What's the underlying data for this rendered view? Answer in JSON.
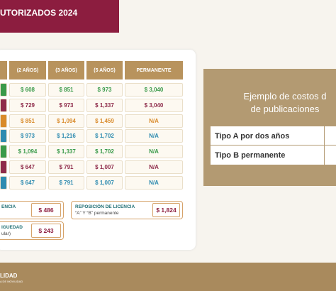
{
  "banner": {
    "title": "UTORIZADOS 2024"
  },
  "table": {
    "headers": [
      "(2 AÑOS)",
      "(3 AÑOS)",
      "(5 AÑOS)",
      "PERMANENTE"
    ],
    "rows": [
      [
        "$ 608",
        "$ 851",
        "$ 973",
        "$ 3,040"
      ],
      [
        "$ 729",
        "$ 973",
        "$ 1,337",
        "$ 3,040"
      ],
      [
        "$ 851",
        "$ 1,094",
        "$ 1,459",
        "N/A"
      ],
      [
        "$ 973",
        "$ 1,216",
        "$ 1,702",
        "N/A"
      ],
      [
        "$ 1,094",
        "$ 1,337",
        "$ 1,702",
        "N/A"
      ],
      [
        "$ 647",
        "$ 791",
        "$ 1,007",
        "N/A"
      ],
      [
        "$ 647",
        "$ 791",
        "$ 1,007",
        "N/A"
      ]
    ]
  },
  "extras": [
    {
      "label": "ENCIA",
      "price": "$ 486"
    },
    {
      "label": "IGUEDAD",
      "sublabel": "ular)",
      "price": "$ 243"
    },
    {
      "label": "REPOSICIÓN DE LICENCIA",
      "sublabel": "“A” Y “B” permanente",
      "price": "$ 1,824"
    }
  ],
  "example": {
    "title": [
      "Ejemplo de costos d",
      "de publicaciones"
    ],
    "rows": [
      "Tipo A por dos años",
      "Tipo B permanente"
    ]
  },
  "footer": {
    "logo": "LIDAD",
    "sublogo": "A DE MOVILIDAD"
  }
}
